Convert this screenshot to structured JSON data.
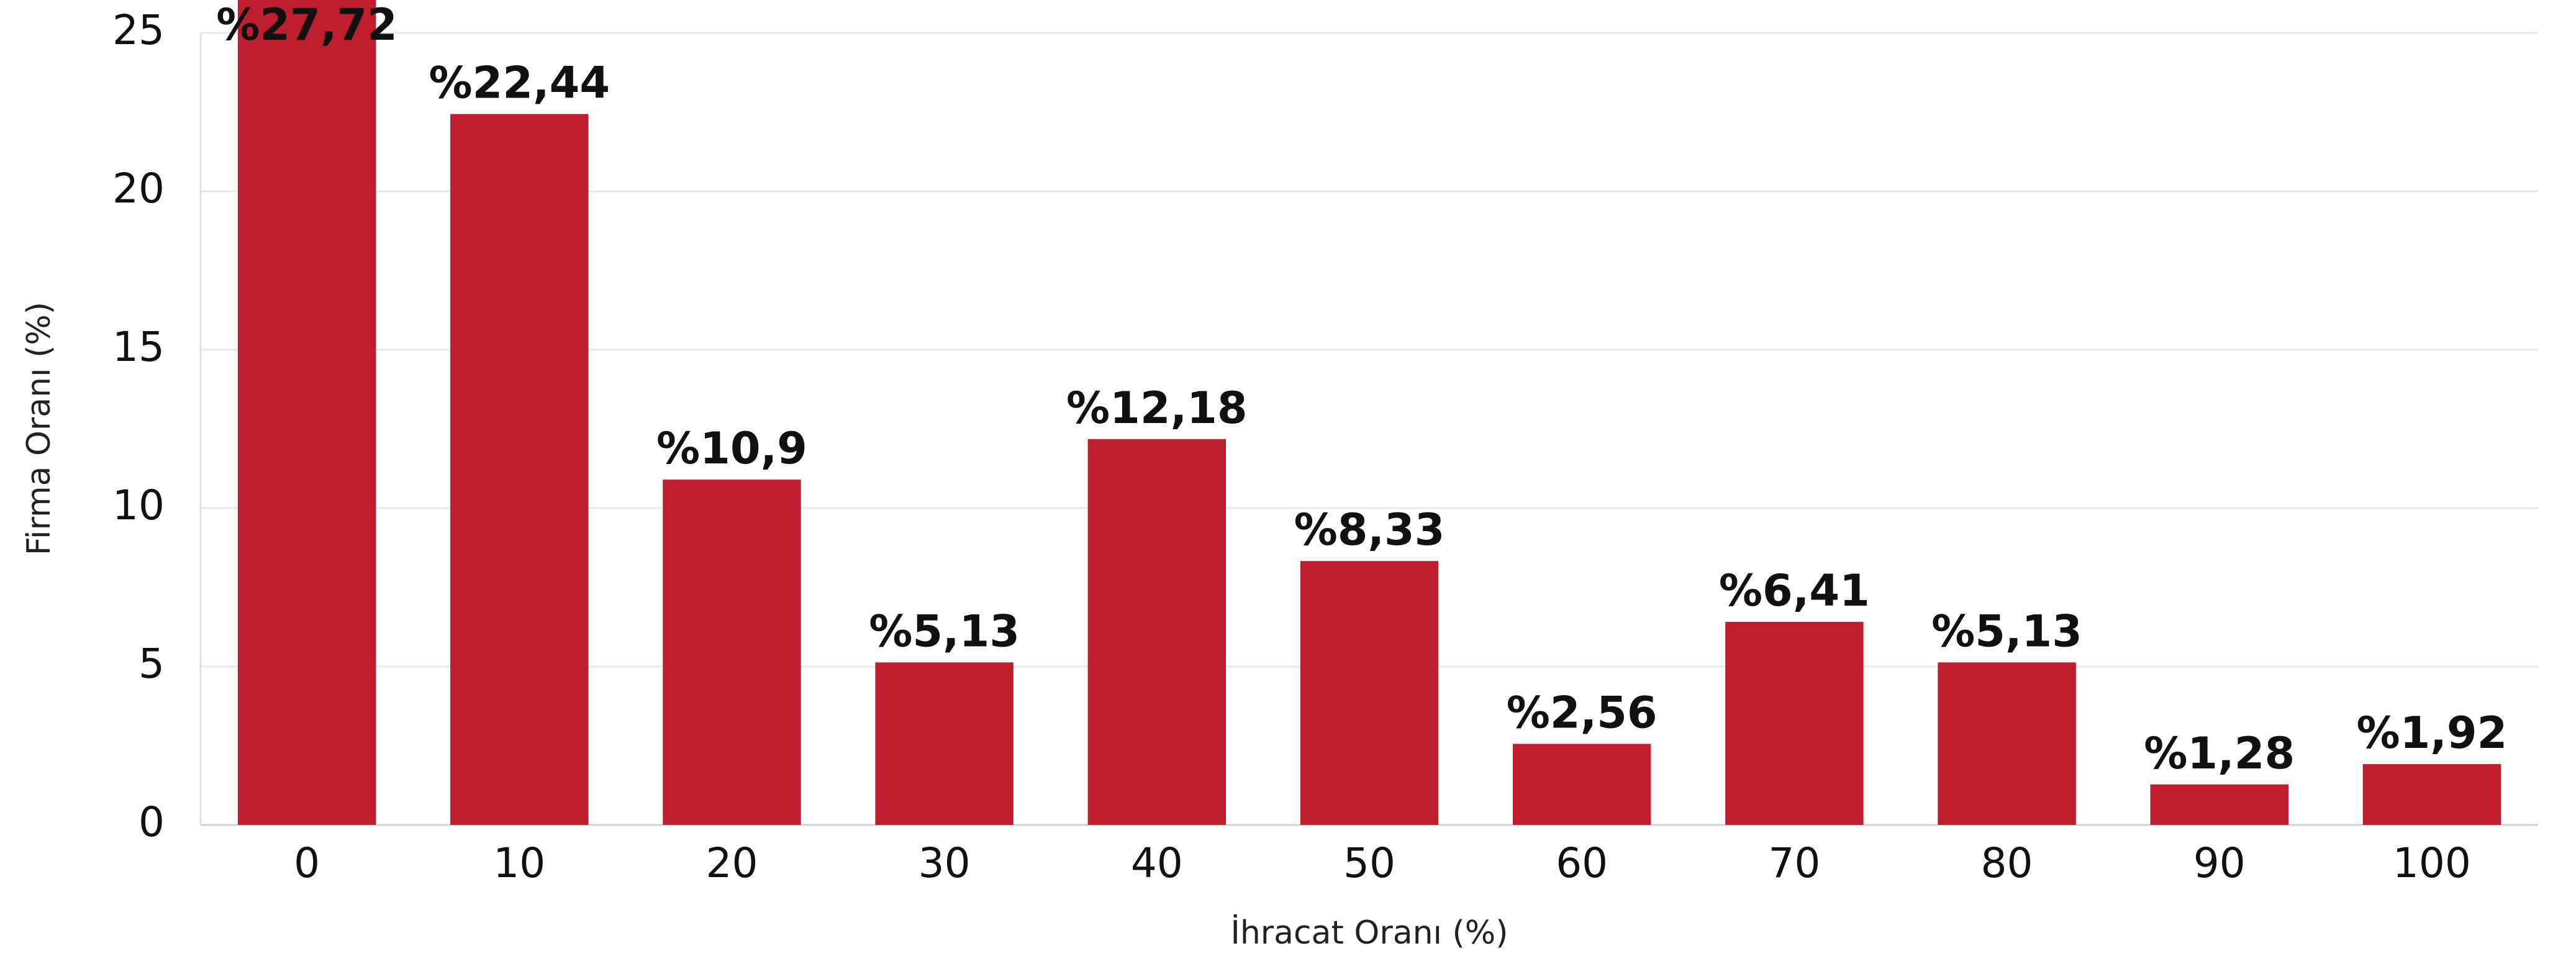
{
  "chart_data": {
    "type": "bar",
    "x_label": "İhracat Oranı (%)",
    "y_label": "Firma Oranı (%)",
    "categories": [
      "0",
      "10",
      "20",
      "30",
      "40",
      "50",
      "60",
      "70",
      "80",
      "90",
      "100"
    ],
    "values": [
      27.72,
      22.44,
      10.9,
      5.13,
      12.18,
      8.33,
      2.56,
      6.41,
      5.13,
      1.28,
      1.92
    ],
    "value_labels": [
      "%27,72",
      "%22,44",
      "%10,9",
      "%5,13",
      "%12,18",
      "%8,33",
      "%2,56",
      "%6,41",
      "%5,13",
      "%1,28",
      "%1,92"
    ],
    "color": "#be1e2d",
    "ylim": [
      0,
      25
    ],
    "yticks": [
      0,
      5,
      10,
      15,
      20,
      25
    ],
    "grid": true
  }
}
